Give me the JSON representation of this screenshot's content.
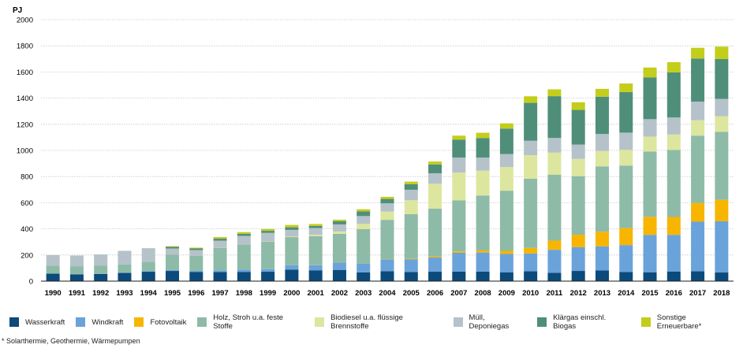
{
  "footnote": "* Solarthermie, Geothermie, Wärmepumpen",
  "chart_data": {
    "type": "bar",
    "stacked": true,
    "unit_label": "PJ",
    "ylim": [
      0,
      2000
    ],
    "yticks": [
      0,
      200,
      400,
      600,
      800,
      1000,
      1200,
      1400,
      1600,
      1800,
      2000
    ],
    "grid": true,
    "legend_position": "bottom",
    "categories": [
      "1990",
      "1991",
      "1992",
      "1993",
      "1994",
      "1995",
      "1996",
      "1997",
      "1998",
      "1999",
      "2000",
      "2001",
      "2002",
      "2003",
      "2004",
      "2005",
      "2006",
      "2007",
      "2008",
      "2009",
      "2010",
      "2011",
      "2012",
      "2013",
      "2014",
      "2015",
      "2016",
      "2017",
      "2018"
    ],
    "series": [
      {
        "name": "Wasserkraft",
        "color": "#0b4a7a",
        "values": [
          57,
          52,
          55,
          63,
          72,
          78,
          71,
          70,
          71,
          72,
          88,
          83,
          86,
          67,
          76,
          70,
          72,
          73,
          73,
          68,
          75,
          64,
          78,
          82,
          70,
          68,
          74,
          75,
          66
        ]
      },
      {
        "name": "Windkraft",
        "color": "#6aa3da",
        "values": [
          0,
          0,
          1,
          2,
          3,
          6,
          7,
          11,
          17,
          20,
          34,
          38,
          57,
          68,
          91,
          98,
          110,
          144,
          146,
          140,
          137,
          176,
          182,
          184,
          206,
          286,
          280,
          380,
          392
        ]
      },
      {
        "name": "Fotovoltaik",
        "color": "#f7b500",
        "values": [
          0,
          0,
          0,
          0,
          0,
          0,
          0,
          0,
          0,
          0,
          0,
          1,
          1,
          1,
          2,
          5,
          8,
          11,
          16,
          24,
          42,
          70,
          95,
          112,
          130,
          138,
          137,
          142,
          164
        ]
      },
      {
        "name": "Holz, Stroh u.a. feste Stoffe",
        "color": "#8dbba7",
        "values": [
          62,
          62,
          64,
          62,
          72,
          118,
          115,
          172,
          192,
          210,
          215,
          222,
          218,
          262,
          300,
          340,
          365,
          390,
          420,
          460,
          530,
          505,
          448,
          500,
          478,
          500,
          513,
          516,
          520
        ]
      },
      {
        "name": "Biodiesel u.a. flüssige Brennstoffe",
        "color": "#dde69e",
        "values": [
          0,
          0,
          0,
          0,
          0,
          0,
          0,
          1,
          1,
          2,
          5,
          10,
          18,
          40,
          64,
          106,
          190,
          212,
          190,
          180,
          180,
          168,
          132,
          118,
          120,
          114,
          118,
          118,
          120
        ]
      },
      {
        "name": "Müll, Deponiegas",
        "color": "#b5c2ca",
        "values": [
          80,
          82,
          84,
          105,
          105,
          48,
          45,
          55,
          65,
          65,
          50,
          52,
          54,
          60,
          62,
          80,
          80,
          115,
          100,
          100,
          110,
          112,
          110,
          130,
          132,
          133,
          130,
          142,
          132
        ]
      },
      {
        "name": "Klärgas einschl. Biogas",
        "color": "#4f8f7a",
        "values": [
          0,
          0,
          0,
          0,
          0,
          12,
          12,
          16,
          16,
          16,
          20,
          16,
          24,
          36,
          34,
          42,
          68,
          138,
          150,
          195,
          290,
          320,
          265,
          285,
          310,
          320,
          345,
          330,
          305
        ]
      },
      {
        "name": "Sonstige Erneuerbare*",
        "color": "#c3cd1c",
        "values": [
          0,
          0,
          0,
          0,
          0,
          5,
          6,
          12,
          13,
          14,
          18,
          15,
          12,
          16,
          16,
          20,
          22,
          30,
          40,
          40,
          50,
          52,
          58,
          60,
          66,
          75,
          78,
          82,
          95
        ]
      }
    ]
  }
}
